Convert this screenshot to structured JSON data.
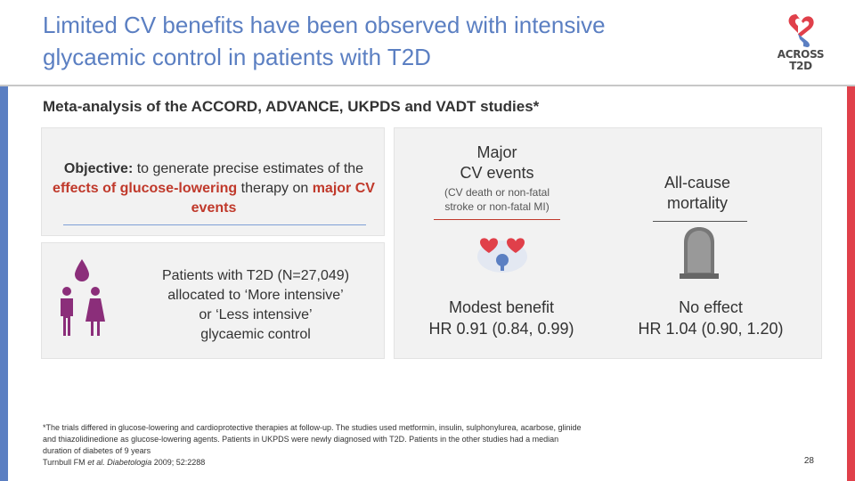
{
  "header": {
    "title_line1": "Limited CV benefits have been observed with intensive",
    "title_line2": "glycaemic control in patients with T2D",
    "logo_line1": "ACROSS",
    "logo_line2": "T2D"
  },
  "subtitle": "Meta-analysis of the ACCORD, ADVANCE, UKPDS and VADT studies*",
  "objective": {
    "label": "Objective:",
    "text1": " to generate precise estimates of the ",
    "highlight1": "effects of glucose-lowering",
    "text2": " therapy on ",
    "highlight2": "major CV events"
  },
  "patients": {
    "line1": "Patients with T2D (N=27,049)",
    "line2": "allocated to ‘More intensive’",
    "line3": "or ‘Less intensive’",
    "line4": "glycaemic control"
  },
  "results": {
    "col1_head_line1": "Major",
    "col1_head_line2": "CV events",
    "col1_sub_line1": "(CV death or non-fatal",
    "col1_sub_line2": "stroke or non-fatal MI)",
    "col1_result_label": "Modest benefit",
    "col1_result_value": "HR 0.91 (0.84, 0.99)",
    "col2_head_line1": "All-cause",
    "col2_head_line2": "mortality",
    "col2_result_label": "No effect",
    "col2_result_value": "HR 1.04 (0.90, 1.20)"
  },
  "footnote": {
    "line1": "*The trials differed in glucose-lowering and cardioprotective therapies at follow-up. The studies used metformin, insulin, sulphonylurea, acarbose, glinide",
    "line2": "and thiazolidinedione as glucose-lowering agents. Patients in UKPDS were newly diagnosed with T2D. Patients in the other studies had a median",
    "line3": "duration of diabetes of 9 years",
    "ref_author": "Turnbull FM ",
    "ref_etal": "et al. Diabetologia",
    "ref_rest": " 2009; 52:2288"
  },
  "page_number": "28",
  "colors": {
    "accent_blue": "#5b7fc2",
    "accent_red": "#e0404a",
    "highlight_red": "#c0392b",
    "icon_purple": "#8b2e7a"
  },
  "icons": [
    "logo-icon",
    "blood-drop-icon",
    "people-icon",
    "heart-brain-icon",
    "tombstone-icon"
  ]
}
